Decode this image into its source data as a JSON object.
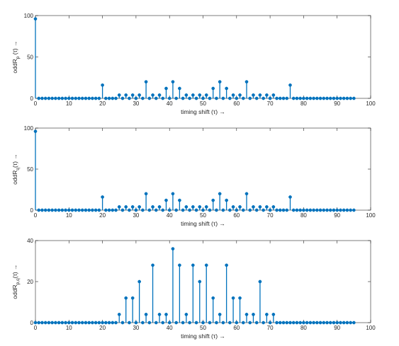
{
  "colors": {
    "stem": "#0072bd",
    "axis": "#262626",
    "background": "#ffffff"
  },
  "chart_data": [
    {
      "type": "stem",
      "xlabel": "timing shift (τ) →",
      "ylabel": "oddR_p (τ) →",
      "ylabel_main": "oddR",
      "ylabel_sub": "p",
      "ylabel_tail": " (τ) →",
      "xlim": [
        0,
        100
      ],
      "ylim": [
        0,
        100
      ],
      "xticks": [
        0,
        10,
        20,
        30,
        40,
        50,
        60,
        70,
        80,
        90,
        100
      ],
      "yticks": [
        0,
        50,
        100
      ],
      "x": [
        0,
        1,
        2,
        3,
        4,
        5,
        6,
        7,
        8,
        9,
        10,
        11,
        12,
        13,
        14,
        15,
        16,
        17,
        18,
        19,
        20,
        21,
        22,
        23,
        24,
        25,
        26,
        27,
        28,
        29,
        30,
        31,
        32,
        33,
        34,
        35,
        36,
        37,
        38,
        39,
        40,
        41,
        42,
        43,
        44,
        45,
        46,
        47,
        48,
        49,
        50,
        51,
        52,
        53,
        54,
        55,
        56,
        57,
        58,
        59,
        60,
        61,
        62,
        63,
        64,
        65,
        66,
        67,
        68,
        69,
        70,
        71,
        72,
        73,
        74,
        75,
        76,
        77,
        78,
        79,
        80,
        81,
        82,
        83,
        84,
        85,
        86,
        87,
        88,
        89,
        90,
        91,
        92,
        93,
        94,
        95
      ],
      "y": [
        96,
        0,
        0,
        0,
        0,
        0,
        0,
        0,
        0,
        0,
        0,
        0,
        0,
        0,
        0,
        0,
        0,
        0,
        0,
        0,
        16,
        0,
        0,
        0,
        0,
        4,
        0,
        4,
        0,
        4,
        0,
        4,
        0,
        20,
        0,
        4,
        0,
        4,
        0,
        12,
        0,
        20,
        0,
        12,
        0,
        4,
        0,
        4,
        0,
        4,
        0,
        4,
        0,
        12,
        0,
        20,
        0,
        12,
        0,
        4,
        0,
        4,
        0,
        20,
        0,
        4,
        0,
        4,
        0,
        4,
        0,
        4,
        0,
        0,
        0,
        0,
        16,
        0,
        0,
        0,
        0,
        0,
        0,
        0,
        0,
        0,
        0,
        0,
        0,
        0,
        0,
        0,
        0,
        0,
        0,
        0
      ]
    },
    {
      "type": "stem",
      "xlabel": "timing shift (τ) →",
      "ylabel": "oddR_q(τ) →",
      "ylabel_main": "oddR",
      "ylabel_sub": "q",
      "ylabel_tail": "(τ) →",
      "xlim": [
        0,
        100
      ],
      "ylim": [
        0,
        100
      ],
      "xticks": [
        0,
        10,
        20,
        30,
        40,
        50,
        60,
        70,
        80,
        90,
        100
      ],
      "yticks": [
        0,
        50,
        100
      ],
      "x": [
        0,
        1,
        2,
        3,
        4,
        5,
        6,
        7,
        8,
        9,
        10,
        11,
        12,
        13,
        14,
        15,
        16,
        17,
        18,
        19,
        20,
        21,
        22,
        23,
        24,
        25,
        26,
        27,
        28,
        29,
        30,
        31,
        32,
        33,
        34,
        35,
        36,
        37,
        38,
        39,
        40,
        41,
        42,
        43,
        44,
        45,
        46,
        47,
        48,
        49,
        50,
        51,
        52,
        53,
        54,
        55,
        56,
        57,
        58,
        59,
        60,
        61,
        62,
        63,
        64,
        65,
        66,
        67,
        68,
        69,
        70,
        71,
        72,
        73,
        74,
        75,
        76,
        77,
        78,
        79,
        80,
        81,
        82,
        83,
        84,
        85,
        86,
        87,
        88,
        89,
        90,
        91,
        92,
        93,
        94,
        95
      ],
      "y": [
        96,
        0,
        0,
        0,
        0,
        0,
        0,
        0,
        0,
        0,
        0,
        0,
        0,
        0,
        0,
        0,
        0,
        0,
        0,
        0,
        16,
        0,
        0,
        0,
        0,
        4,
        0,
        4,
        0,
        4,
        0,
        4,
        0,
        20,
        0,
        4,
        0,
        4,
        0,
        12,
        0,
        20,
        0,
        12,
        0,
        4,
        0,
        4,
        0,
        4,
        0,
        4,
        0,
        12,
        0,
        20,
        0,
        12,
        0,
        4,
        0,
        4,
        0,
        20,
        0,
        4,
        0,
        4,
        0,
        4,
        0,
        4,
        0,
        0,
        0,
        0,
        16,
        0,
        0,
        0,
        0,
        0,
        0,
        0,
        0,
        0,
        0,
        0,
        0,
        0,
        0,
        0,
        0,
        0,
        0,
        0
      ]
    },
    {
      "type": "stem",
      "xlabel": "timing shift (τ) →",
      "ylabel": "oddR_p,q(τ) →",
      "ylabel_main": "oddR",
      "ylabel_sub": "p,q",
      "ylabel_tail": "(τ) →",
      "xlim": [
        0,
        100
      ],
      "ylim": [
        0,
        40
      ],
      "xticks": [
        0,
        10,
        20,
        30,
        40,
        50,
        60,
        70,
        80,
        90,
        100
      ],
      "yticks": [
        0,
        20,
        40
      ],
      "x": [
        0,
        1,
        2,
        3,
        4,
        5,
        6,
        7,
        8,
        9,
        10,
        11,
        12,
        13,
        14,
        15,
        16,
        17,
        18,
        19,
        20,
        21,
        22,
        23,
        24,
        25,
        26,
        27,
        28,
        29,
        30,
        31,
        32,
        33,
        34,
        35,
        36,
        37,
        38,
        39,
        40,
        41,
        42,
        43,
        44,
        45,
        46,
        47,
        48,
        49,
        50,
        51,
        52,
        53,
        54,
        55,
        56,
        57,
        58,
        59,
        60,
        61,
        62,
        63,
        64,
        65,
        66,
        67,
        68,
        69,
        70,
        71,
        72,
        73,
        74,
        75,
        76,
        77,
        78,
        79,
        80,
        81,
        82,
        83,
        84,
        85,
        86,
        87,
        88,
        89,
        90,
        91,
        92,
        93,
        94,
        95
      ],
      "y": [
        0,
        0,
        0,
        0,
        0,
        0,
        0,
        0,
        0,
        0,
        0,
        0,
        0,
        0,
        0,
        0,
        0,
        0,
        0,
        0,
        0,
        0,
        0,
        0,
        0,
        4,
        0,
        12,
        0,
        12,
        0,
        20,
        0,
        4,
        0,
        28,
        0,
        4,
        0,
        4,
        0,
        36,
        0,
        28,
        0,
        4,
        0,
        28,
        0,
        20,
        0,
        28,
        0,
        12,
        0,
        4,
        0,
        28,
        0,
        12,
        0,
        12,
        0,
        4,
        0,
        4,
        0,
        20,
        0,
        4,
        0,
        4,
        0,
        0,
        0,
        0,
        0,
        0,
        0,
        0,
        0,
        0,
        0,
        0,
        0,
        0,
        0,
        0,
        0,
        0,
        0,
        0,
        0,
        0,
        0,
        0
      ]
    }
  ]
}
